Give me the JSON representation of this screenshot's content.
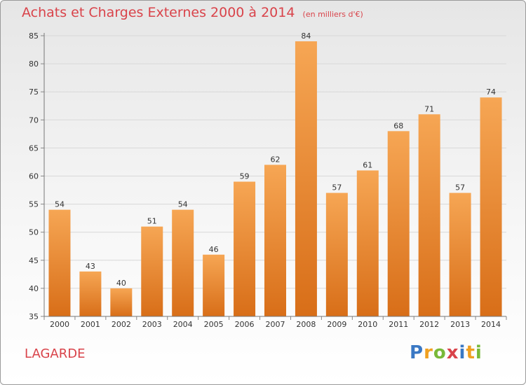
{
  "title": "Achats et Charges Externes 2000 à 2014",
  "unit": "(en milliers d'€)",
  "commune": "LAGARDE",
  "logo": {
    "letters": [
      "P",
      "r",
      "o",
      "x",
      "i",
      "t",
      "i"
    ],
    "colors": [
      "#3a78c4",
      "#f0a020",
      "#79b939",
      "#d9434a",
      "#3a78c4",
      "#f0a020",
      "#79b939"
    ]
  },
  "colors": {
    "title": "#d9434a",
    "bar_light": "#f6a654",
    "bar_dark": "#d86e18"
  },
  "chart_data": {
    "type": "bar",
    "title": "Achats et Charges Externes 2000 à 2014",
    "categories": [
      "2000",
      "2001",
      "2002",
      "2003",
      "2004",
      "2005",
      "2006",
      "2007",
      "2008",
      "2009",
      "2010",
      "2011",
      "2012",
      "2013",
      "2014"
    ],
    "values": [
      54,
      43,
      40,
      51,
      54,
      46,
      59,
      62,
      84,
      57,
      61,
      68,
      71,
      57,
      74
    ],
    "ylim": [
      35,
      85
    ],
    "yticks": [
      35,
      40,
      45,
      50,
      55,
      60,
      65,
      70,
      75,
      80,
      85
    ],
    "grid": true,
    "xlabel": "",
    "ylabel": ""
  }
}
